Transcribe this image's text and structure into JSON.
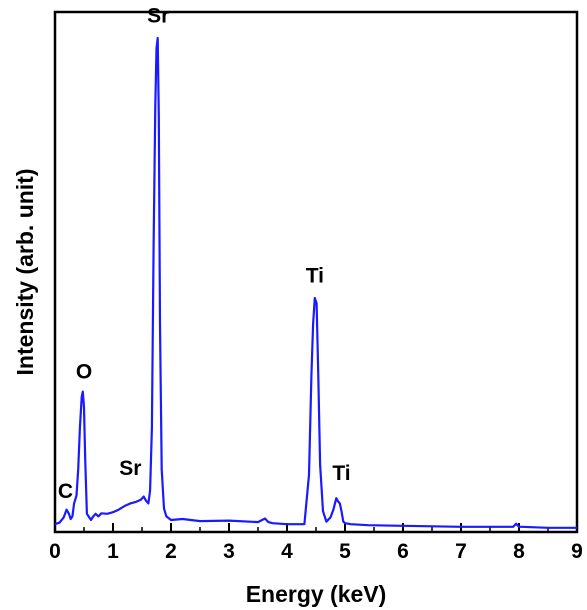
{
  "chart_data": {
    "type": "line",
    "xlabel": "Energy (keV)",
    "ylabel": "Intensity (arb. unit)",
    "xlim": [
      0,
      9
    ],
    "ylim": [
      0,
      100
    ],
    "x_ticks": [
      "0",
      "1",
      "2",
      "3",
      "4",
      "5",
      "6",
      "7",
      "8",
      "9"
    ],
    "y_ticks_shown": false,
    "grid": false,
    "series": [
      {
        "color": "#1a1aff",
        "x": [
          0.0,
          0.08,
          0.15,
          0.2,
          0.24,
          0.27,
          0.3,
          0.33,
          0.37,
          0.4,
          0.43,
          0.46,
          0.48,
          0.5,
          0.52,
          0.55,
          0.58,
          0.62,
          0.66,
          0.7,
          0.75,
          0.8,
          0.9,
          1.0,
          1.1,
          1.2,
          1.3,
          1.4,
          1.48,
          1.53,
          1.57,
          1.61,
          1.64,
          1.67,
          1.7,
          1.73,
          1.75,
          1.77,
          1.79,
          1.81,
          1.84,
          1.88,
          1.92,
          2.0,
          2.2,
          2.5,
          3.0,
          3.5,
          3.62,
          3.68,
          3.75,
          4.0,
          4.3,
          4.38,
          4.42,
          4.45,
          4.48,
          4.51,
          4.54,
          4.57,
          4.62,
          4.68,
          4.75,
          4.8,
          4.85,
          4.88,
          4.91,
          4.94,
          4.97,
          5.0,
          5.1,
          5.4,
          6.0,
          7.0,
          7.9,
          7.95,
          8.0,
          8.05,
          8.5,
          9.0
        ],
        "y": [
          1.5,
          1.8,
          2.8,
          4.3,
          3.5,
          2.5,
          3.0,
          5.5,
          7.0,
          12.0,
          20.0,
          26.0,
          27.0,
          24.0,
          14.0,
          3.5,
          3.0,
          2.3,
          3.0,
          3.5,
          3.0,
          3.6,
          3.5,
          3.8,
          4.3,
          5.0,
          5.5,
          5.8,
          6.2,
          6.8,
          6.0,
          5.5,
          8.0,
          20.0,
          55.0,
          82.0,
          93.0,
          95.0,
          80.0,
          40.0,
          12.0,
          4.5,
          3.0,
          2.3,
          2.5,
          2.1,
          2.2,
          1.9,
          2.6,
          1.9,
          1.7,
          1.5,
          1.5,
          11.0,
          30.0,
          40.0,
          45.0,
          44.0,
          30.0,
          13.0,
          4.0,
          2.0,
          2.8,
          4.3,
          6.5,
          5.9,
          5.5,
          4.0,
          2.0,
          1.7,
          1.5,
          1.3,
          1.2,
          1.0,
          1.0,
          1.6,
          1.0,
          1.0,
          0.8,
          0.8
        ]
      }
    ],
    "annotations": [
      {
        "text": "C",
        "x": 0.18,
        "y": 6.5
      },
      {
        "text": "O",
        "x": 0.5,
        "y": 29.5
      },
      {
        "text": "Sr",
        "x": 1.3,
        "y": 11.0
      },
      {
        "text": "Sr",
        "x": 1.78,
        "y": 98.0
      },
      {
        "text": "Ti",
        "x": 4.48,
        "y": 48.0
      },
      {
        "text": "Ti",
        "x": 4.94,
        "y": 10.0
      }
    ]
  }
}
